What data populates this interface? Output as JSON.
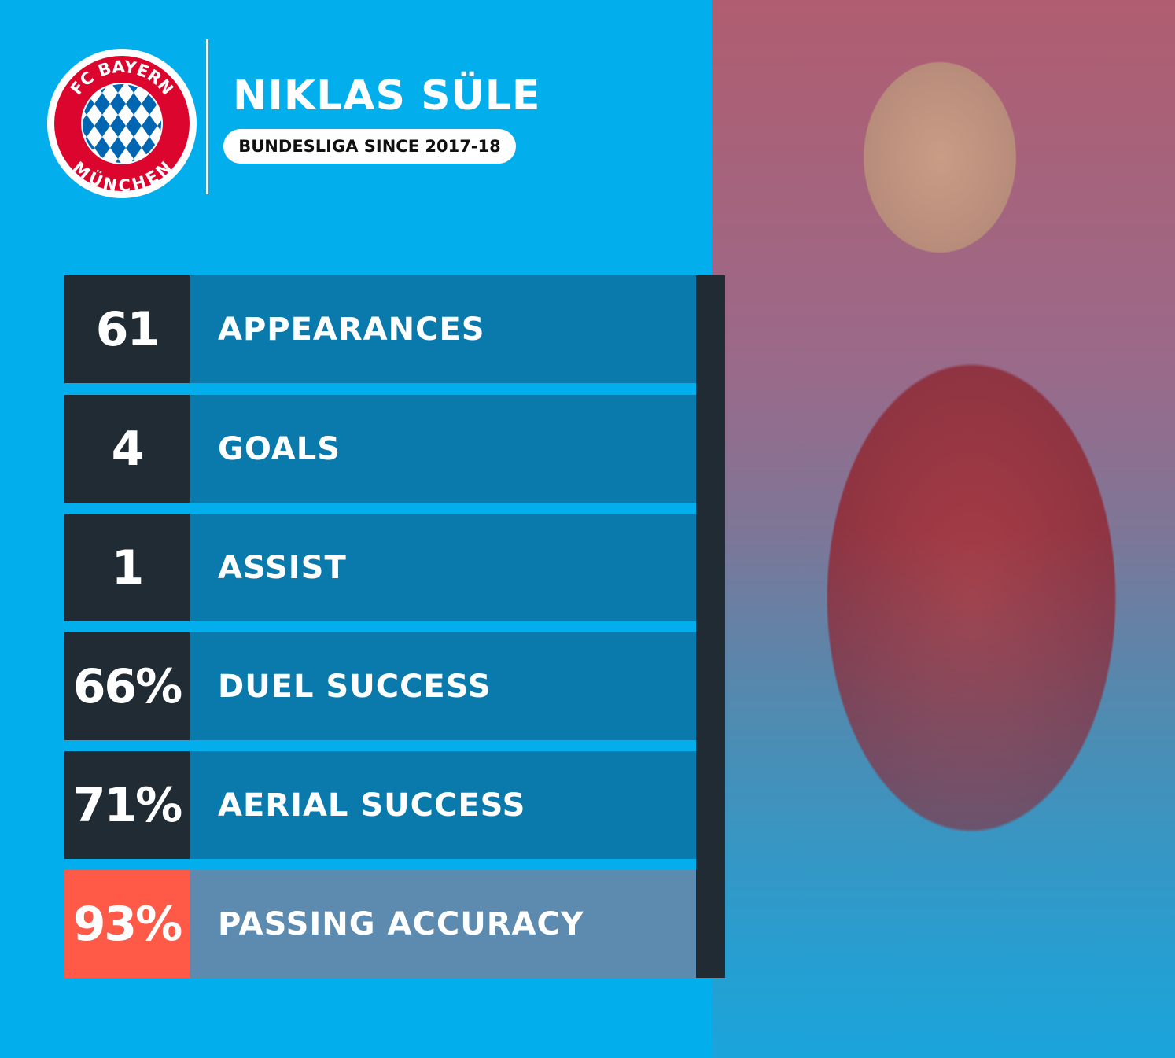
{
  "crest": {
    "text_top": "FC BAYERN",
    "text_bottom": "MÜNCHEN",
    "colors": {
      "red": "#dc052d",
      "blue": "#0066b2"
    }
  },
  "player": {
    "name": "NIKLAS SÜLE",
    "subtitle": "BUNDESLIGA SINCE 2017-18"
  },
  "stats": [
    {
      "value": "61",
      "label": "APPEARANCES"
    },
    {
      "value": "4",
      "label": "GOALS"
    },
    {
      "value": "1",
      "label": "ASSIST"
    },
    {
      "value": "66%",
      "label": "DUEL SUCCESS"
    },
    {
      "value": "71%",
      "label": "AERIAL SUCCESS"
    },
    {
      "value": "93%",
      "label": "PASSING ACCURACY",
      "highlight": true
    }
  ],
  "colors": {
    "background": "#03aeec",
    "dark": "#202b33",
    "bar": "#0a7aad",
    "highlight_value": "#ff5a47",
    "highlight_bar": "#5d8bb0"
  }
}
